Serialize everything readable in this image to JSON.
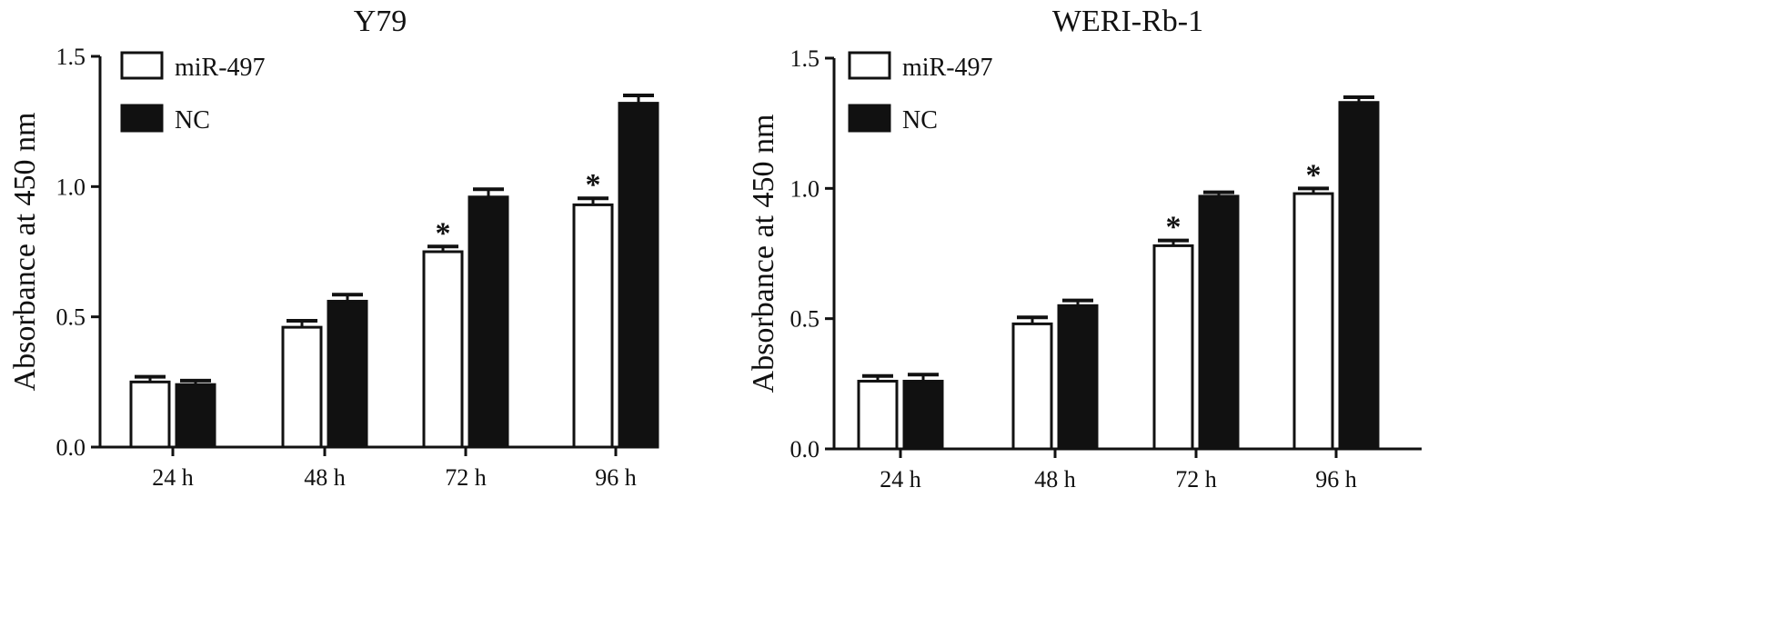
{
  "chart_data": [
    {
      "type": "bar",
      "title": "Y79",
      "ylabel": "Absorbance at 450 nm",
      "xlabel": "",
      "ylim": [
        0,
        1.5
      ],
      "yticks": [
        "0.0",
        "0.5",
        "1.0",
        "1.5"
      ],
      "categories": [
        "24 h",
        "48 h",
        "72 h",
        "96 h"
      ],
      "series": [
        {
          "name": "miR-497",
          "fill": "#ffffff",
          "values": [
            0.25,
            0.46,
            0.75,
            0.93
          ],
          "errors": [
            0.02,
            0.025,
            0.02,
            0.025
          ]
        },
        {
          "name": "NC",
          "fill": "#111111",
          "values": [
            0.24,
            0.56,
            0.96,
            1.32
          ],
          "errors": [
            0.015,
            0.025,
            0.03,
            0.03
          ]
        }
      ],
      "significance": [
        {
          "series": 0,
          "category": 2,
          "label": "*"
        },
        {
          "series": 0,
          "category": 3,
          "label": "*"
        }
      ],
      "legend_position": "top-left"
    },
    {
      "type": "bar",
      "title": "WERI-Rb-1",
      "ylabel": "Absorbance at 450 nm",
      "xlabel": "",
      "ylim": [
        0,
        1.5
      ],
      "yticks": [
        "0.0",
        "0.5",
        "1.0",
        "1.5"
      ],
      "categories": [
        "24 h",
        "48 h",
        "72 h",
        "96 h"
      ],
      "series": [
        {
          "name": "miR-497",
          "fill": "#ffffff",
          "values": [
            0.26,
            0.48,
            0.78,
            0.98
          ],
          "errors": [
            0.02,
            0.025,
            0.02,
            0.02
          ]
        },
        {
          "name": "NC",
          "fill": "#111111",
          "values": [
            0.26,
            0.55,
            0.97,
            1.33
          ],
          "errors": [
            0.025,
            0.02,
            0.015,
            0.02
          ]
        }
      ],
      "significance": [
        {
          "series": 0,
          "category": 2,
          "label": "*"
        },
        {
          "series": 0,
          "category": 3,
          "label": "*"
        }
      ],
      "legend_position": "top-left"
    }
  ]
}
